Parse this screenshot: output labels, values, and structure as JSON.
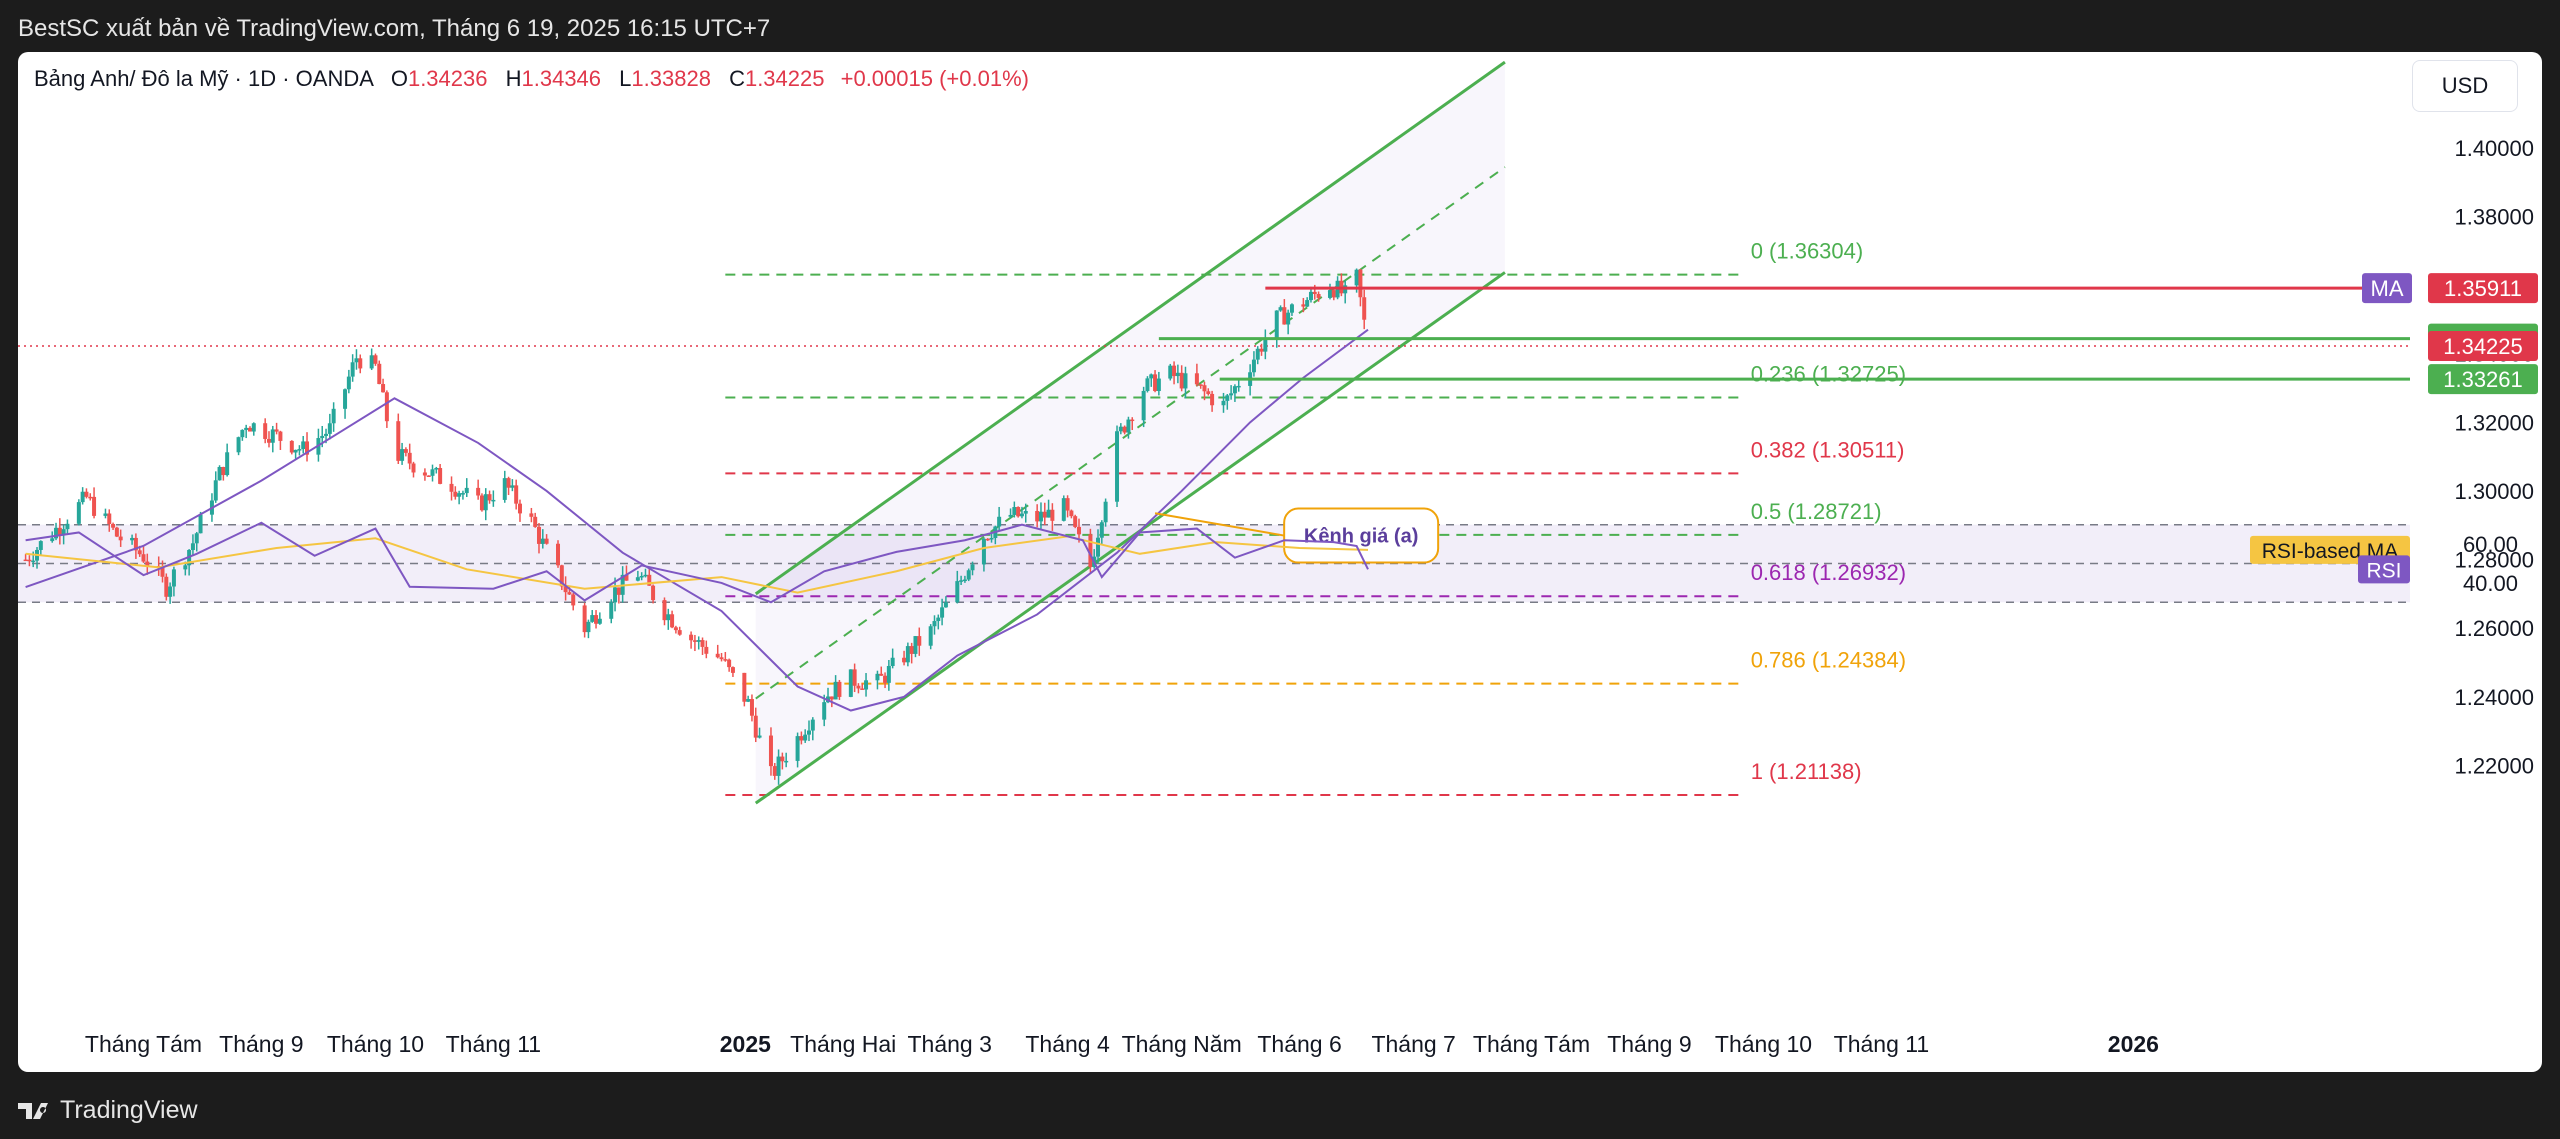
{
  "header": {
    "publisher_text": "BestSC xuất bản về TradingView.com, Tháng 6 19, 2025 16:15 UTC+7"
  },
  "legend": {
    "symbol": "Bảng Anh/ Đô la Mỹ · 1D · OANDA",
    "o_label": "O",
    "o_value": "1.34236",
    "h_label": "H",
    "h_value": "1.34346",
    "l_label": "L",
    "l_value": "1.33828",
    "c_label": "C",
    "c_value": "1.34225",
    "change": "+0.00015 (+0.01%)"
  },
  "currency_button": "USD",
  "footer": {
    "brand": "TradingView"
  },
  "colors": {
    "up": "#26a69a",
    "down": "#ef5350",
    "channel": "#4caf50",
    "ma": "#7e57c2",
    "rsi": "#7e57c2",
    "rsi_ma": "#f5c542",
    "price_line": "#e0374a",
    "fib_red": "#e0374a",
    "fib_purple": "#9c27b0",
    "fib_orange": "#f0a30a",
    "annotation": "#f0a30a"
  },
  "chart_data": [
    {
      "type": "candlestick",
      "title": "Bảng Anh/ Đô la Mỹ · 1D · OANDA",
      "x_ticks": [
        {
          "label": "Tháng Tám",
          "x": "2024-08-01"
        },
        {
          "label": "Tháng 9",
          "x": "2024-09-01"
        },
        {
          "label": "Tháng 10",
          "x": "2024-10-01"
        },
        {
          "label": "Tháng 11",
          "x": "2024-11-01"
        },
        {
          "label": "2025",
          "x": "2025-01-01",
          "bold": true
        },
        {
          "label": "Tháng Hai",
          "x": "2025-02-01"
        },
        {
          "label": "Tháng 3",
          "x": "2025-03-01"
        },
        {
          "label": "Tháng 4",
          "x": "2025-04-01"
        },
        {
          "label": "Tháng Năm",
          "x": "2025-05-01"
        },
        {
          "label": "Tháng 6",
          "x": "2025-06-01"
        },
        {
          "label": "Tháng 7",
          "x": "2025-07-01"
        },
        {
          "label": "Tháng Tám",
          "x": "2025-08-01"
        },
        {
          "label": "Tháng 9",
          "x": "2025-09-01"
        },
        {
          "label": "Tháng 10",
          "x": "2025-10-01"
        },
        {
          "label": "Tháng 11",
          "x": "2025-11-01"
        },
        {
          "label": "2026",
          "x": "2026-01-01",
          "bold": true
        }
      ],
      "y_ticks": [
        "1.22000",
        "1.24000",
        "1.26000",
        "1.28000",
        "1.30000",
        "1.32000",
        "1.34000",
        "1.36000",
        "1.38000",
        "1.40000"
      ],
      "ylim": [
        1.196,
        1.409
      ],
      "close_series": [
        {
          "x": "2024-07-01",
          "y": 1.28
        },
        {
          "x": "2024-07-10",
          "y": 1.29
        },
        {
          "x": "2024-07-17",
          "y": 1.298
        },
        {
          "x": "2024-07-25",
          "y": 1.287
        },
        {
          "x": "2024-08-01",
          "y": 1.281
        },
        {
          "x": "2024-08-07",
          "y": 1.272
        },
        {
          "x": "2024-08-14",
          "y": 1.285
        },
        {
          "x": "2024-08-21",
          "y": 1.305
        },
        {
          "x": "2024-08-28",
          "y": 1.32
        },
        {
          "x": "2024-09-05",
          "y": 1.316
        },
        {
          "x": "2024-09-12",
          "y": 1.312
        },
        {
          "x": "2024-09-19",
          "y": 1.318
        },
        {
          "x": "2024-09-26",
          "y": 1.339
        },
        {
          "x": "2024-10-01",
          "y": 1.336
        },
        {
          "x": "2024-10-06",
          "y": 1.311
        },
        {
          "x": "2024-10-14",
          "y": 1.306
        },
        {
          "x": "2024-10-21",
          "y": 1.302
        },
        {
          "x": "2024-10-28",
          "y": 1.296
        },
        {
          "x": "2024-11-04",
          "y": 1.302
        },
        {
          "x": "2024-11-11",
          "y": 1.291
        },
        {
          "x": "2024-11-18",
          "y": 1.276
        },
        {
          "x": "2024-11-25",
          "y": 1.26
        },
        {
          "x": "2024-12-02",
          "y": 1.27
        },
        {
          "x": "2024-12-09",
          "y": 1.276
        },
        {
          "x": "2024-12-16",
          "y": 1.265
        },
        {
          "x": "2024-12-23",
          "y": 1.257
        },
        {
          "x": "2024-12-31",
          "y": 1.251
        },
        {
          "x": "2025-01-07",
          "y": 1.238
        },
        {
          "x": "2025-01-13",
          "y": 1.217
        },
        {
          "x": "2025-01-20",
          "y": 1.228
        },
        {
          "x": "2025-01-27",
          "y": 1.24
        },
        {
          "x": "2025-02-03",
          "y": 1.245
        },
        {
          "x": "2025-02-10",
          "y": 1.244
        },
        {
          "x": "2025-02-17",
          "y": 1.252
        },
        {
          "x": "2025-02-24",
          "y": 1.259
        },
        {
          "x": "2025-03-03",
          "y": 1.272
        },
        {
          "x": "2025-03-10",
          "y": 1.287
        },
        {
          "x": "2025-03-17",
          "y": 1.293
        },
        {
          "x": "2025-03-24",
          "y": 1.292
        },
        {
          "x": "2025-03-31",
          "y": 1.295
        },
        {
          "x": "2025-04-07",
          "y": 1.278
        },
        {
          "x": "2025-04-14",
          "y": 1.315
        },
        {
          "x": "2025-04-21",
          "y": 1.33
        },
        {
          "x": "2025-04-28",
          "y": 1.334
        },
        {
          "x": "2025-05-05",
          "y": 1.33
        },
        {
          "x": "2025-05-12",
          "y": 1.325
        },
        {
          "x": "2025-05-19",
          "y": 1.337
        },
        {
          "x": "2025-05-26",
          "y": 1.35
        },
        {
          "x": "2025-06-02",
          "y": 1.355
        },
        {
          "x": "2025-06-09",
          "y": 1.36
        },
        {
          "x": "2025-06-13",
          "y": 1.357
        },
        {
          "x": "2025-06-16",
          "y": 1.362
        },
        {
          "x": "2025-06-19",
          "y": 1.34225
        }
      ],
      "ma_series": [
        {
          "x": "2024-07-01",
          "y": 1.272
        },
        {
          "x": "2024-08-01",
          "y": 1.284
        },
        {
          "x": "2024-09-01",
          "y": 1.303
        },
        {
          "x": "2024-09-20",
          "y": 1.316
        },
        {
          "x": "2024-10-06",
          "y": 1.327
        },
        {
          "x": "2024-10-28",
          "y": 1.314
        },
        {
          "x": "2024-11-15",
          "y": 1.3
        },
        {
          "x": "2024-12-05",
          "y": 1.282
        },
        {
          "x": "2024-12-31",
          "y": 1.265
        },
        {
          "x": "2025-01-20",
          "y": 1.243
        },
        {
          "x": "2025-02-03",
          "y": 1.236
        },
        {
          "x": "2025-02-17",
          "y": 1.24
        },
        {
          "x": "2025-03-03",
          "y": 1.252
        },
        {
          "x": "2025-03-24",
          "y": 1.264
        },
        {
          "x": "2025-04-14",
          "y": 1.282
        },
        {
          "x": "2025-05-01",
          "y": 1.3
        },
        {
          "x": "2025-05-19",
          "y": 1.32
        },
        {
          "x": "2025-06-02",
          "y": 1.333
        },
        {
          "x": "2025-06-19",
          "y": 1.347
        }
      ],
      "current_price_line": 1.34225,
      "fibonacci": {
        "x_start": "2025-01-01",
        "x_end": "2025-09-25",
        "levels": [
          {
            "label": "0 (1.36304)",
            "value": 1.36304,
            "color": "#4caf50"
          },
          {
            "label": "0.236 (1.32725)",
            "value": 1.32725,
            "color": "#4caf50"
          },
          {
            "label": "0.382 (1.30511)",
            "value": 1.30511,
            "color": "#e0374a"
          },
          {
            "label": "0.5 (1.28721)",
            "value": 1.28721,
            "color": "#4caf50"
          },
          {
            "label": "0.618 (1.26932)",
            "value": 1.26932,
            "color": "#9c27b0"
          },
          {
            "label": "0.786 (1.24384)",
            "value": 1.24384,
            "color": "#f0a30a"
          },
          {
            "label": "1 (1.21138)",
            "value": 1.21138,
            "color": "#e0374a"
          }
        ]
      },
      "channel": {
        "lower": [
          {
            "x": "2025-01-09",
            "y": 1.209
          },
          {
            "x": "2025-07-25",
            "y": 1.3637
          }
        ],
        "upper": [
          {
            "x": "2025-01-09",
            "y": 1.27
          },
          {
            "x": "2025-07-25",
            "y": 1.425
          }
        ],
        "mid_dashed": [
          {
            "x": "2025-01-09",
            "y": 1.2395
          },
          {
            "x": "2025-07-25",
            "y": 1.3944
          }
        ],
        "fill_until": "2025-07-25",
        "annotation_text": "Kênh giá (a)",
        "annotation_anchor": {
          "x": "2025-04-24",
          "y": 1.2935
        },
        "annotation_box": {
          "x": "2025-05-29",
          "y": 1.287
        }
      },
      "horizontal_lines": [
        {
          "value": 1.35911,
          "color": "#e0374a",
          "from": "2025-05-23"
        },
        {
          "value": 1.34441,
          "color": "#4caf50",
          "from": "2025-04-25"
        },
        {
          "value": 1.33261,
          "color": "#4caf50",
          "from": "2025-05-11"
        }
      ],
      "price_labels": [
        {
          "text": "1.35911",
          "value": 1.35911,
          "bg": "#e0374a"
        },
        {
          "text": "1.34441",
          "value": 1.34441,
          "bg": "#4caf50"
        },
        {
          "text": "1.34225",
          "value": 1.34225,
          "bg": "#e0374a"
        },
        {
          "text": "1.33261",
          "value": 1.33261,
          "bg": "#4caf50"
        }
      ],
      "ma_tag": "MA"
    },
    {
      "type": "line",
      "title": "RSI",
      "y_ticks": [
        "40.00",
        "60.00"
      ],
      "ylim": [
        25,
        75
      ],
      "bands": {
        "upper": 70,
        "middle": 50,
        "lower": 30
      },
      "rsi_series": [
        {
          "x": "2024-07-01",
          "y": 62
        },
        {
          "x": "2024-07-15",
          "y": 66
        },
        {
          "x": "2024-08-01",
          "y": 44
        },
        {
          "x": "2024-08-15",
          "y": 55
        },
        {
          "x": "2024-09-01",
          "y": 71
        },
        {
          "x": "2024-09-15",
          "y": 54
        },
        {
          "x": "2024-10-01",
          "y": 68
        },
        {
          "x": "2024-10-10",
          "y": 38
        },
        {
          "x": "2024-11-01",
          "y": 37
        },
        {
          "x": "2024-11-15",
          "y": 46
        },
        {
          "x": "2024-11-25",
          "y": 31
        },
        {
          "x": "2024-12-10",
          "y": 49
        },
        {
          "x": "2024-12-31",
          "y": 40
        },
        {
          "x": "2025-01-13",
          "y": 30
        },
        {
          "x": "2025-01-27",
          "y": 46
        },
        {
          "x": "2025-02-15",
          "y": 56
        },
        {
          "x": "2025-03-05",
          "y": 62
        },
        {
          "x": "2025-03-20",
          "y": 70
        },
        {
          "x": "2025-04-05",
          "y": 62
        },
        {
          "x": "2025-04-10",
          "y": 43
        },
        {
          "x": "2025-04-20",
          "y": 66
        },
        {
          "x": "2025-05-05",
          "y": 68
        },
        {
          "x": "2025-05-15",
          "y": 53
        },
        {
          "x": "2025-05-28",
          "y": 62
        },
        {
          "x": "2025-06-10",
          "y": 61
        },
        {
          "x": "2025-06-16",
          "y": 59
        },
        {
          "x": "2025-06-19",
          "y": 47
        }
      ],
      "rsi_ma_series": [
        {
          "x": "2024-07-01",
          "y": 55
        },
        {
          "x": "2024-08-05",
          "y": 48
        },
        {
          "x": "2024-09-05",
          "y": 58
        },
        {
          "x": "2024-10-01",
          "y": 63
        },
        {
          "x": "2024-10-25",
          "y": 47
        },
        {
          "x": "2024-11-25",
          "y": 37
        },
        {
          "x": "2024-12-31",
          "y": 43
        },
        {
          "x": "2025-01-20",
          "y": 35
        },
        {
          "x": "2025-02-15",
          "y": 46
        },
        {
          "x": "2025-03-10",
          "y": 58
        },
        {
          "x": "2025-04-01",
          "y": 64
        },
        {
          "x": "2025-04-20",
          "y": 55
        },
        {
          "x": "2025-05-10",
          "y": 61
        },
        {
          "x": "2025-06-01",
          "y": 58
        },
        {
          "x": "2025-06-19",
          "y": 57
        }
      ],
      "legend": [
        {
          "text": "RSI-based MA",
          "bg": "#f5c542",
          "fg": "#131722",
          "value": 57
        },
        {
          "text": "RSI",
          "bg": "#7e57c2",
          "fg": "#ffffff",
          "value": 47
        }
      ]
    }
  ]
}
